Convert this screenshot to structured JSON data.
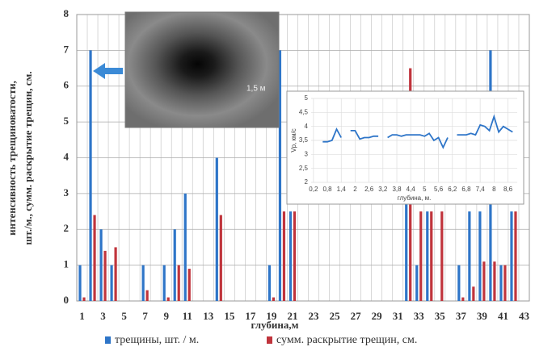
{
  "chart_data": [
    {
      "type": "bar",
      "x_label": "глубина,м",
      "y_label": [
        "интенсивность трещиноватости,",
        "шт./м., сумм. раскрытие трещин, см."
      ],
      "categories": [
        "1",
        null,
        "3",
        null,
        "5",
        null,
        "7",
        null,
        "9",
        null,
        "11",
        null,
        "13",
        null,
        "15",
        null,
        "17",
        null,
        "19",
        null,
        "21",
        null,
        "23",
        null,
        "25",
        null,
        "27",
        null,
        "29",
        null,
        "31",
        null,
        "33",
        null,
        "35",
        null,
        "37",
        null,
        "39",
        null,
        "41",
        null,
        "43"
      ],
      "series": [
        {
          "name": "трещины, шт. / м.",
          "color": "#2e75c8",
          "values": [
            1,
            7,
            2,
            1,
            0,
            0,
            1,
            0,
            1,
            2,
            3,
            0,
            0,
            4,
            0,
            0,
            0,
            0,
            1,
            7,
            2.5,
            0,
            0,
            0,
            0,
            0,
            0,
            0,
            0,
            0,
            0,
            3,
            1,
            2.5,
            0,
            0,
            1,
            2.5,
            2.5,
            7,
            1,
            2.5,
            0
          ]
        },
        {
          "name": "сумм. раскрытие трещин, см.",
          "color": "#c0343c",
          "values": [
            0.1,
            2.4,
            1.4,
            1.5,
            0,
            0,
            0.3,
            0,
            0.1,
            1,
            0.9,
            0,
            0,
            2.4,
            0,
            0,
            0,
            0,
            0.1,
            2.5,
            2.5,
            0,
            0,
            0,
            0,
            0,
            0,
            0,
            0,
            0,
            0,
            6.5,
            2.5,
            2.5,
            2.5,
            0,
            0.1,
            0.4,
            1.1,
            1.1,
            1,
            2.5,
            0
          ]
        }
      ],
      "ylim": [
        0,
        8
      ],
      "yticks": [
        0,
        1,
        2,
        3,
        4,
        5,
        6,
        7,
        8
      ],
      "grid": true
    },
    {
      "type": "line",
      "x_label": "глубина, м.",
      "y_label": "Vp, км/с",
      "x": [
        0.2,
        0.4,
        0.6,
        0.8,
        1.0,
        1.2,
        1.4,
        1.6,
        1.8,
        2.0,
        2.2,
        2.4,
        2.6,
        2.8,
        3.0,
        3.2,
        3.4,
        3.6,
        3.8,
        4.0,
        4.2,
        4.4,
        4.6,
        4.8,
        5.0,
        5.2,
        5.4,
        5.6,
        5.8,
        6.0,
        6.2,
        6.4,
        6.6,
        6.8,
        7.0,
        7.2,
        7.4,
        7.6,
        7.8,
        8.0,
        8.2,
        8.4,
        8.6,
        8.8
      ],
      "series": [
        {
          "name": null,
          "color": "#2e75c8",
          "values": [
            3.85,
            null,
            3.45,
            3.45,
            3.5,
            3.9,
            3.6,
            null,
            3.85,
            3.85,
            3.55,
            3.6,
            3.6,
            3.65,
            3.65,
            null,
            3.6,
            3.7,
            3.7,
            3.65,
            3.7,
            3.7,
            3.7,
            3.7,
            3.65,
            3.75,
            3.5,
            3.6,
            3.25,
            3.6,
            null,
            3.7,
            3.7,
            3.7,
            3.75,
            3.7,
            4.05,
            4.0,
            3.85,
            4.35,
            3.8,
            4.0,
            3.9,
            3.8
          ]
        }
      ],
      "xlim": [
        0.1,
        9.0
      ],
      "xticks": [
        {
          "value": 0.2,
          "label": "0,2"
        },
        {
          "value": 0.8,
          "label": "0,8"
        },
        {
          "value": 1.4,
          "label": "1,4"
        },
        2,
        {
          "value": 2.6,
          "label": "2,6"
        },
        {
          "value": 3.2,
          "label": "3,2"
        },
        {
          "value": 3.8,
          "label": "3,8"
        },
        {
          "value": 4.4,
          "label": "4,4"
        },
        5,
        {
          "value": 5.6,
          "label": "5,6"
        },
        {
          "value": 6.2,
          "label": "6,2"
        },
        {
          "value": 6.8,
          "label": "6,8"
        },
        {
          "value": 7.4,
          "label": "7,4"
        },
        8,
        {
          "value": 8.6,
          "label": "8,6"
        }
      ],
      "ylim": [
        2,
        5
      ],
      "yticks": [
        2,
        {
          "value": 2.5,
          "label": "2,5"
        },
        3,
        {
          "value": 3.5,
          "label": "3,5"
        },
        4,
        {
          "value": 4.5,
          "label": "4,5"
        },
        5
      ],
      "grid": true
    }
  ],
  "photo": {
    "caption": "1,5 м"
  }
}
